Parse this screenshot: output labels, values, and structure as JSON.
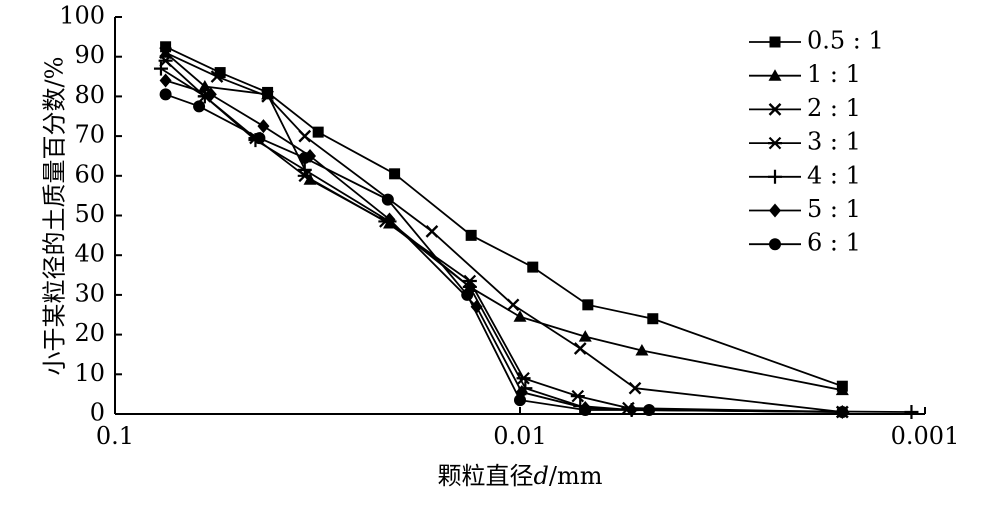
{
  "chart_data": {
    "type": "line",
    "title": "",
    "xlabel": "颗粒直径d/mm",
    "xlabel_parts": {
      "before": "颗粒直径",
      "italic": "d",
      "after": "/mm"
    },
    "ylabel": "小于某粒径的土质量百分数/%",
    "x_scale": "log",
    "x_reversed": true,
    "xlim": [
      0.1,
      0.001
    ],
    "ylim": [
      0,
      100
    ],
    "x_ticks": [
      {
        "value": 0.1,
        "label": "0.1"
      },
      {
        "value": 0.01,
        "label": "0.01"
      },
      {
        "value": 0.001,
        "label": "0.001"
      }
    ],
    "y_ticks": [
      0,
      10,
      20,
      30,
      40,
      50,
      60,
      70,
      80,
      90,
      100
    ],
    "grid": false,
    "legend_position": "top-right",
    "series": [
      {
        "name": "0.5 : 1",
        "marker": "square",
        "x": [
          0.075,
          0.055,
          0.042,
          0.0315,
          0.0204,
          0.0132,
          0.0093,
          0.0068,
          0.0047,
          0.0016
        ],
        "y": [
          92.5,
          86,
          81,
          71,
          60.5,
          45,
          37,
          27.5,
          24,
          7
        ]
      },
      {
        "name": "1 : 1",
        "marker": "triangle",
        "x": [
          0.075,
          0.06,
          0.042,
          0.033,
          0.021,
          0.0133,
          0.01,
          0.0069,
          0.005,
          0.0016
        ],
        "y": [
          91,
          82.5,
          80.5,
          59,
          48,
          32,
          24.5,
          19.5,
          16,
          6
        ]
      },
      {
        "name": "2 : 1",
        "marker": "x",
        "x": [
          0.075,
          0.056,
          0.042,
          0.034,
          0.0165,
          0.0104,
          0.0071,
          0.0052,
          0.0016
        ],
        "y": [
          91,
          85,
          80,
          70,
          46,
          27.5,
          16.5,
          6.5,
          0.5
        ]
      },
      {
        "name": "3 : 1",
        "marker": "asterisk",
        "x": [
          0.075,
          0.06,
          0.045,
          0.034,
          0.0215,
          0.0133,
          0.0098,
          0.0072,
          0.0054,
          0.0016
        ],
        "y": [
          89,
          80,
          69.5,
          60,
          48.5,
          33.5,
          9,
          4.5,
          1.5,
          0.5
        ]
      },
      {
        "name": "4 : 1",
        "marker": "plus",
        "x": [
          0.077,
          0.06,
          0.045,
          0.034,
          0.021,
          0.0133,
          0.0097,
          0.0071,
          0.0053,
          0.00108
        ],
        "y": [
          87,
          80,
          69,
          61.5,
          48.5,
          32,
          6.5,
          2,
          1,
          0.5
        ]
      },
      {
        "name": "5 : 1",
        "marker": "diamond",
        "x": [
          0.075,
          0.058,
          0.043,
          0.033,
          0.021,
          0.0128,
          0.0099,
          0.0069,
          0.0053,
          0.0016
        ],
        "y": [
          84,
          80.5,
          72.5,
          65,
          49,
          27,
          5.5,
          1.5,
          1,
          0.5
        ]
      },
      {
        "name": "6 : 1",
        "marker": "circle",
        "x": [
          0.075,
          0.062,
          0.044,
          0.034,
          0.0212,
          0.0135,
          0.01,
          0.0069,
          0.0048,
          0.0016
        ],
        "y": [
          80.5,
          77.5,
          69.5,
          64.5,
          54,
          30,
          3.5,
          1,
          1,
          0.5
        ]
      }
    ]
  }
}
